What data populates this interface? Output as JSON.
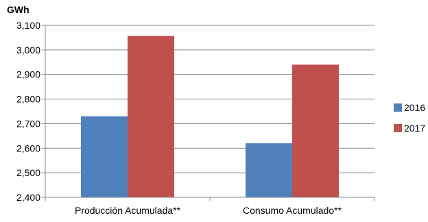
{
  "chart_data": {
    "type": "bar",
    "unit_label": "GWh",
    "categories": [
      "Producción Acumulada**",
      "Consumo Acumulado**"
    ],
    "series": [
      {
        "name": "2016",
        "color": "#4F81BD",
        "values": [
          2730,
          2620
        ]
      },
      {
        "name": "2017",
        "color": "#C0504D",
        "values": [
          3057,
          2940
        ]
      }
    ],
    "ylim": [
      2400,
      3100
    ],
    "yticks": [
      2400,
      2500,
      2600,
      2700,
      2800,
      2900,
      3000,
      3100
    ],
    "ytick_labels": [
      "2,400",
      "2,500",
      "2,600",
      "2,700",
      "2,800",
      "2,900",
      "3,000",
      "3,100"
    ],
    "grid": true,
    "legend_position": "right"
  }
}
